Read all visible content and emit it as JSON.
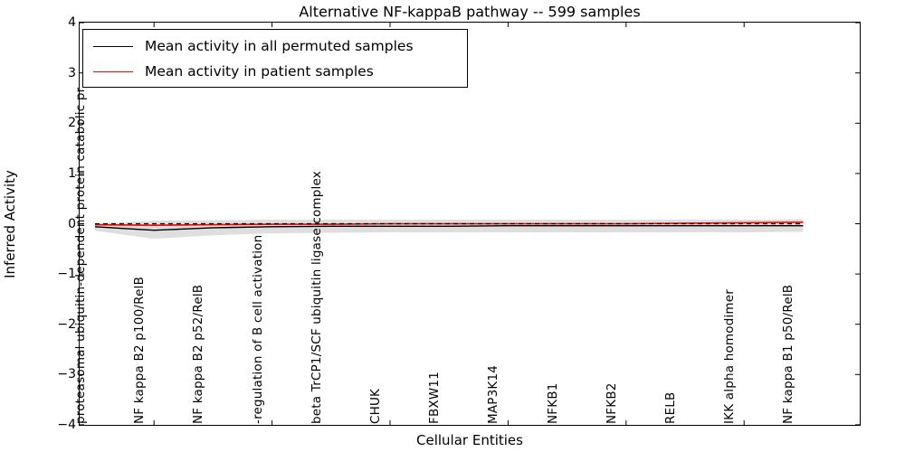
{
  "chart_data": {
    "type": "line",
    "title": "Alternative NF-kappaB pathway -- 599 samples",
    "xlabel": "Cellular Entities",
    "ylabel": "Inferred Activity",
    "ylim": [
      -4,
      4
    ],
    "ytick_values": [
      4,
      3,
      2,
      1,
      0,
      -1,
      -2,
      -3,
      -4
    ],
    "ytick_labels": [
      "4",
      "3",
      "2",
      "1",
      "0",
      "−1",
      "−2",
      "−3",
      "−4"
    ],
    "xtick_indices": [
      1,
      3,
      5,
      7,
      9,
      11
    ],
    "grid": false,
    "legend_position": "upper left",
    "categories": [
      "proteasomal ubiquitin-dependent protein catabolic pr",
      "NF kappa B2 p100/RelB",
      "NF kappa B2 p52/RelB",
      "-regulation of B cell activation",
      "beta TrCP1/SCF ubiquitin ligase complex",
      "CHUK",
      "FBXW11",
      "MAP3K14",
      "NFKB1",
      "NFKB2",
      "RELB",
      "IKK alpha homodimer",
      "NF kappa B1 p50/RelB"
    ],
    "series": [
      {
        "name": "Mean activity in all permuted samples",
        "color": "#000000",
        "style": "solid",
        "values": [
          -0.06,
          -0.13,
          -0.08,
          -0.06,
          -0.05,
          -0.05,
          -0.05,
          -0.04,
          -0.04,
          -0.04,
          -0.04,
          -0.04,
          -0.04
        ]
      },
      {
        "name": "Mean activity in patient samples",
        "color": "#ff0000",
        "style": "solid",
        "values": [
          -0.02,
          -0.03,
          -0.02,
          -0.01,
          -0.01,
          0.0,
          0.0,
          0.0,
          0.0,
          0.0,
          0.01,
          0.02,
          0.03
        ]
      }
    ],
    "band": {
      "name": "permuted-samples-range",
      "color": "#dedede",
      "upper": [
        0.0,
        0.06,
        0.07,
        0.08,
        0.08,
        0.08,
        0.08,
        0.08,
        0.08,
        0.08,
        0.08,
        0.08,
        0.09
      ],
      "lower": [
        -0.14,
        -0.3,
        -0.23,
        -0.19,
        -0.18,
        -0.17,
        -0.17,
        -0.17,
        -0.17,
        -0.17,
        -0.17,
        -0.17,
        -0.16
      ]
    },
    "zero_line": {
      "value": 0,
      "color": "#000000",
      "style": "dashed"
    }
  }
}
